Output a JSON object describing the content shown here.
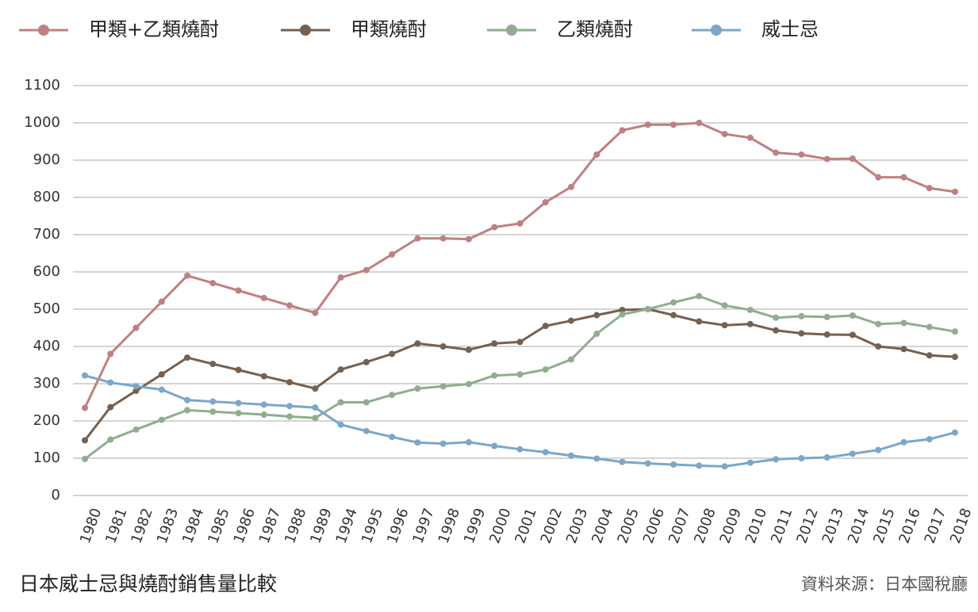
{
  "chart_data": {
    "type": "line",
    "title": "日本威士忌與燒酎銷售量比較",
    "source": "資料來源：日本國稅廳",
    "categories": [
      "1980",
      "1981",
      "1982",
      "1983",
      "1984",
      "1985",
      "1986",
      "1987",
      "1988",
      "1989",
      "1994",
      "1995",
      "1996",
      "1997",
      "1998",
      "1999",
      "2000",
      "2001",
      "2002",
      "2003",
      "2004",
      "2005",
      "2006",
      "2007",
      "2008",
      "2009",
      "2010",
      "2011",
      "2012",
      "2013",
      "2014",
      "2015",
      "2016",
      "2017",
      "2018"
    ],
    "series": [
      {
        "name": "甲類+乙類燒酎",
        "color": "#c08080",
        "values": [
          235,
          380,
          450,
          520,
          590,
          570,
          550,
          530,
          510,
          490,
          585,
          605,
          647,
          690,
          690,
          688,
          720,
          730,
          787,
          828,
          915,
          980,
          995,
          995,
          1000,
          970,
          960,
          920,
          915,
          903,
          904,
          854,
          854,
          825,
          815
        ]
      },
      {
        "name": "甲類燒酎",
        "color": "#76604f",
        "values": [
          148,
          237,
          281,
          325,
          370,
          353,
          337,
          320,
          304,
          287,
          338,
          358,
          380,
          408,
          400,
          391,
          408,
          412,
          455,
          469,
          484,
          498,
          500,
          484,
          467,
          457,
          460,
          443,
          435,
          432,
          431,
          400,
          393,
          376,
          372
        ]
      },
      {
        "name": "乙類燒酎",
        "color": "#8fae8f",
        "values": [
          98,
          150,
          177,
          203,
          229,
          225,
          221,
          217,
          212,
          208,
          250,
          250,
          270,
          287,
          293,
          299,
          322,
          325,
          338,
          365,
          434,
          486,
          500,
          518,
          535,
          510,
          498,
          477,
          481,
          479,
          483,
          460,
          463,
          452,
          440
        ]
      },
      {
        "name": "威士忌",
        "color": "#7ba7c9",
        "values": [
          322,
          303,
          293,
          284,
          256,
          252,
          248,
          244,
          240,
          236,
          190,
          173,
          157,
          142,
          139,
          143,
          133,
          124,
          116,
          107,
          99,
          90,
          86,
          83,
          80,
          78,
          88,
          97,
          100,
          102,
          112,
          122,
          143,
          151,
          169
        ]
      }
    ],
    "ylim": [
      0,
      1100
    ],
    "yticks": [
      0,
      100,
      200,
      300,
      400,
      500,
      600,
      700,
      800,
      900,
      1000,
      1100
    ],
    "grid": true,
    "legend": "top"
  }
}
